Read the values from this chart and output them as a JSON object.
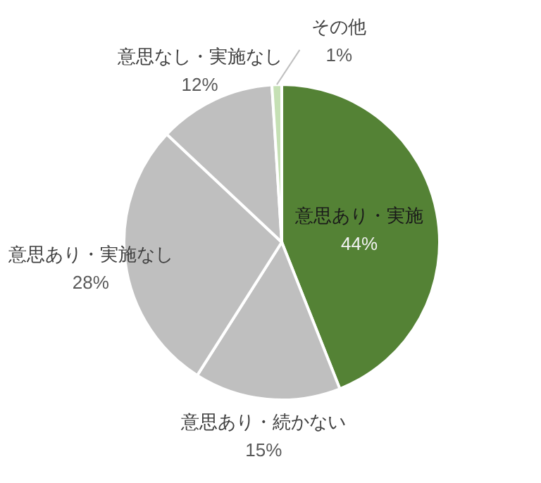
{
  "chart_data": {
    "type": "pie",
    "categories": [
      "意思あり・実施",
      "意思あり・続かない",
      "意思あり・実施なし",
      "意思なし・実施なし",
      "その他"
    ],
    "values": [
      44,
      15,
      28,
      12,
      1
    ],
    "colors": [
      "#548235",
      "#bfbfbf",
      "#bfbfbf",
      "#bfbfbf",
      "#c5e0b4"
    ],
    "value_labels": [
      "44%",
      "15%",
      "28%",
      "12%",
      "1%"
    ]
  }
}
